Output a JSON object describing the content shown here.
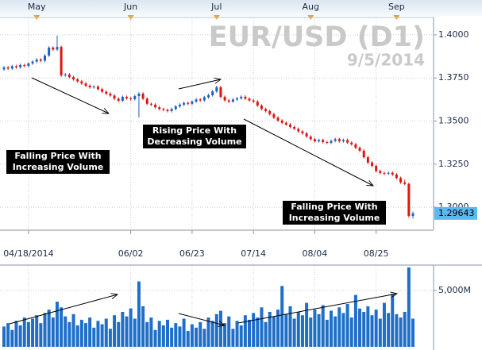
{
  "chart_data": {
    "type": "candlestick",
    "title": "EUR/USD (D1)",
    "subtitle": "9/5/2014",
    "categories": [
      null,
      null,
      null,
      null,
      null,
      null,
      "04/18/2014",
      null,
      null,
      null,
      null,
      null,
      null,
      null,
      null,
      null,
      null,
      null,
      null,
      null,
      null,
      null,
      null,
      null,
      null,
      null,
      null,
      null,
      null,
      null,
      null,
      "06/02",
      null,
      null,
      null,
      null,
      null,
      null,
      null,
      null,
      null,
      null,
      null,
      null,
      null,
      null,
      "06/23",
      null,
      null,
      null,
      null,
      null,
      null,
      null,
      null,
      null,
      null,
      null,
      null,
      null,
      null,
      "07/14",
      null,
      null,
      null,
      null,
      null,
      null,
      null,
      null,
      null,
      null,
      null,
      null,
      null,
      null,
      "08/04",
      null,
      null,
      null,
      null,
      null,
      null,
      null,
      null,
      null,
      null,
      null,
      null,
      null,
      null,
      "08/25",
      null,
      null,
      null,
      null,
      null,
      null,
      null,
      null,
      null
    ],
    "month_labels": [
      null,
      null,
      null,
      null,
      null,
      null,
      null,
      null,
      "May",
      null,
      null,
      null,
      null,
      null,
      null,
      null,
      null,
      null,
      null,
      null,
      null,
      null,
      null,
      null,
      null,
      null,
      null,
      null,
      null,
      null,
      null,
      "Jun",
      null,
      null,
      null,
      null,
      null,
      null,
      null,
      null,
      null,
      null,
      null,
      null,
      null,
      null,
      null,
      null,
      null,
      null,
      null,
      null,
      "Jul",
      null,
      null,
      null,
      null,
      null,
      null,
      null,
      null,
      null,
      null,
      null,
      null,
      null,
      null,
      null,
      null,
      null,
      null,
      null,
      null,
      null,
      null,
      "Aug",
      null,
      null,
      null,
      null,
      null,
      null,
      null,
      null,
      null,
      null,
      null,
      null,
      null,
      null,
      null,
      null,
      null,
      null,
      null,
      null,
      "Sep",
      null,
      null,
      null,
      null
    ],
    "open": [
      1.38,
      1.3811,
      1.3805,
      1.3818,
      1.3812,
      1.3825,
      1.382,
      1.3834,
      1.3845,
      1.3857,
      1.385,
      1.388,
      1.3926,
      1.3915,
      1.393,
      1.3765,
      1.377,
      1.3755,
      1.3742,
      1.373,
      1.3718,
      1.3705,
      1.3696,
      1.37,
      1.3685,
      1.367,
      1.3659,
      1.3648,
      1.363,
      1.3618,
      1.364,
      1.3632,
      1.3627,
      1.3645,
      1.3659,
      1.363,
      1.36,
      1.3595,
      1.358,
      1.357,
      1.3565,
      1.3558,
      1.357,
      1.3585,
      1.3595,
      1.3605,
      1.36,
      1.3613,
      1.3625,
      1.362,
      1.3638,
      1.365,
      1.3672,
      1.3696,
      1.364,
      1.362,
      1.3613,
      1.3625,
      1.3632,
      1.3641,
      1.363,
      1.362,
      1.3613,
      1.359,
      1.357,
      1.3558,
      1.354,
      1.352,
      1.3503,
      1.349,
      1.348,
      1.3466,
      1.3455,
      1.344,
      1.3429,
      1.341,
      1.3395,
      1.3383,
      1.339,
      1.3378,
      1.3374,
      1.3385,
      1.3395,
      1.3383,
      1.339,
      1.3375,
      1.3365,
      1.3345,
      1.3328,
      1.329,
      1.3259,
      1.324,
      1.321,
      1.3199,
      1.3195,
      1.32,
      1.319,
      1.317,
      1.3144,
      1.3135,
      1.295
    ],
    "high": [
      1.3819,
      1.3819,
      1.3826,
      1.3826,
      1.3833,
      1.3833,
      1.3842,
      1.3853,
      1.3865,
      1.3865,
      1.3888,
      1.3934,
      1.3934,
      1.3995,
      1.3938,
      1.3778,
      1.3778,
      1.3763,
      1.375,
      1.3738,
      1.3726,
      1.3713,
      1.3708,
      1.3708,
      1.3693,
      1.3678,
      1.3667,
      1.3656,
      1.3638,
      1.3648,
      1.3648,
      1.364,
      1.3653,
      1.3667,
      1.3667,
      1.3638,
      1.3608,
      1.3603,
      1.3588,
      1.3578,
      1.3573,
      1.3578,
      1.3593,
      1.3603,
      1.3613,
      1.3613,
      1.3621,
      1.3633,
      1.3633,
      1.3646,
      1.3658,
      1.368,
      1.3705,
      1.3704,
      1.3648,
      1.3628,
      1.3633,
      1.364,
      1.3649,
      1.3649,
      1.3638,
      1.3628,
      1.3621,
      1.3598,
      1.3578,
      1.3566,
      1.3548,
      1.3528,
      1.3511,
      1.3498,
      1.3488,
      1.3474,
      1.3463,
      1.3448,
      1.3437,
      1.3418,
      1.3403,
      1.3398,
      1.3398,
      1.3386,
      1.3393,
      1.3403,
      1.3403,
      1.3398,
      1.3398,
      1.3383,
      1.3373,
      1.3353,
      1.3336,
      1.3298,
      1.3267,
      1.3248,
      1.3218,
      1.3207,
      1.3208,
      1.3208,
      1.3198,
      1.3178,
      1.316,
      1.3143,
      1.2975
    ],
    "low": [
      1.3792,
      1.3797,
      1.3797,
      1.3804,
      1.3804,
      1.3812,
      1.3812,
      1.3826,
      1.3837,
      1.3842,
      1.3842,
      1.3872,
      1.3907,
      1.3907,
      1.3757,
      1.3757,
      1.3747,
      1.3734,
      1.3722,
      1.371,
      1.3697,
      1.3688,
      1.3688,
      1.3677,
      1.3662,
      1.3651,
      1.364,
      1.3622,
      1.361,
      1.361,
      1.3624,
      1.3619,
      1.3619,
      1.352,
      1.3622,
      1.3592,
      1.3587,
      1.3572,
      1.3562,
      1.3557,
      1.355,
      1.355,
      1.3562,
      1.3577,
      1.3587,
      1.3592,
      1.3592,
      1.3605,
      1.3612,
      1.3612,
      1.363,
      1.3642,
      1.3664,
      1.3632,
      1.3612,
      1.3605,
      1.3605,
      1.3617,
      1.3624,
      1.3622,
      1.3612,
      1.3605,
      1.3582,
      1.3562,
      1.355,
      1.3532,
      1.3512,
      1.3495,
      1.3482,
      1.3472,
      1.3458,
      1.3447,
      1.3432,
      1.3421,
      1.3402,
      1.3387,
      1.3375,
      1.3375,
      1.337,
      1.3366,
      1.3366,
      1.3377,
      1.3375,
      1.3375,
      1.3367,
      1.3357,
      1.3337,
      1.332,
      1.3282,
      1.3251,
      1.3232,
      1.3202,
      1.3191,
      1.3187,
      1.3187,
      1.3182,
      1.3162,
      1.3136,
      1.3127,
      1.294,
      1.2935
    ],
    "close": [
      1.3811,
      1.3805,
      1.3818,
      1.3812,
      1.3825,
      1.382,
      1.3834,
      1.3845,
      1.3857,
      1.385,
      1.388,
      1.3926,
      1.3915,
      1.393,
      1.3765,
      1.377,
      1.3755,
      1.3742,
      1.373,
      1.3718,
      1.3705,
      1.3696,
      1.37,
      1.3685,
      1.367,
      1.3659,
      1.3648,
      1.363,
      1.3618,
      1.364,
      1.3632,
      1.3627,
      1.3645,
      1.3659,
      1.363,
      1.36,
      1.3595,
      1.358,
      1.357,
      1.3565,
      1.3558,
      1.357,
      1.3585,
      1.3595,
      1.3605,
      1.36,
      1.3613,
      1.3625,
      1.362,
      1.3638,
      1.365,
      1.3672,
      1.3696,
      1.364,
      1.362,
      1.3613,
      1.3625,
      1.3632,
      1.3641,
      1.363,
      1.362,
      1.3613,
      1.359,
      1.357,
      1.3558,
      1.354,
      1.352,
      1.3503,
      1.349,
      1.348,
      1.3466,
      1.3455,
      1.344,
      1.3429,
      1.341,
      1.3395,
      1.3383,
      1.339,
      1.3378,
      1.3374,
      1.3385,
      1.3395,
      1.3383,
      1.339,
      1.3375,
      1.3365,
      1.3345,
      1.3328,
      1.329,
      1.3259,
      1.324,
      1.321,
      1.3199,
      1.3195,
      1.32,
      1.319,
      1.317,
      1.3144,
      1.3135,
      1.295,
      1.2964
    ],
    "up_color": "#1f5fc4",
    "down_color": "#e01414",
    "ylim": [
      1.2867,
      1.4101
    ],
    "yticks": [
      {
        "value": 1.4,
        "label": "1.4000"
      },
      {
        "value": 1.375,
        "label": "1.3750"
      },
      {
        "value": 1.35,
        "label": "1.3500"
      },
      {
        "value": 1.325,
        "label": "1.3250"
      },
      {
        "value": 1.3,
        "label": "1.3000"
      }
    ],
    "last_price": {
      "value": 1.29643,
      "label": "1.29643"
    },
    "grid": true,
    "volume": {
      "color": "#1f6fc8",
      "values": [
        1800,
        2100,
        1500,
        2300,
        1900,
        2600,
        2200,
        2500,
        2800,
        2100,
        3000,
        3300,
        2600,
        4000,
        3500,
        2700,
        2200,
        2900,
        1900,
        2400,
        2100,
        2600,
        1700,
        2300,
        2000,
        2500,
        1600,
        2800,
        2200,
        3100,
        2700,
        3400,
        2500,
        5800,
        3600,
        2200,
        2600,
        1500,
        2300,
        1900,
        2400,
        1700,
        2100,
        1800,
        2500,
        1400,
        2000,
        1700,
        2200,
        1600,
        2600,
        2300,
        2900,
        3200,
        2100,
        2700,
        1600,
        2300,
        1900,
        2800,
        2400,
        3000,
        2600,
        3500,
        2200,
        3100,
        2700,
        3300,
        5400,
        2900,
        3600,
        2500,
        3100,
        2800,
        3900,
        2600,
        3300,
        2900,
        3700,
        2400,
        3200,
        2700,
        3500,
        3000,
        3800,
        2600,
        4600,
        3400,
        3100,
        3600,
        2800,
        3300,
        2500,
        3900,
        3000,
        4700,
        2900,
        2600,
        3100,
        7040,
        2500
      ],
      "ylim": [
        0,
        7180
      ],
      "yticks": [
        {
          "value": 5000,
          "label": "5,000M"
        }
      ]
    },
    "annotations": [
      {
        "lines": [
          "Falling Price With",
          "Increasing Volume"
        ]
      },
      {
        "lines": [
          "Rising Price With",
          "Decreasing Volume"
        ]
      },
      {
        "lines": [
          "Falling Price With",
          "Increasing Volume"
        ]
      }
    ]
  }
}
